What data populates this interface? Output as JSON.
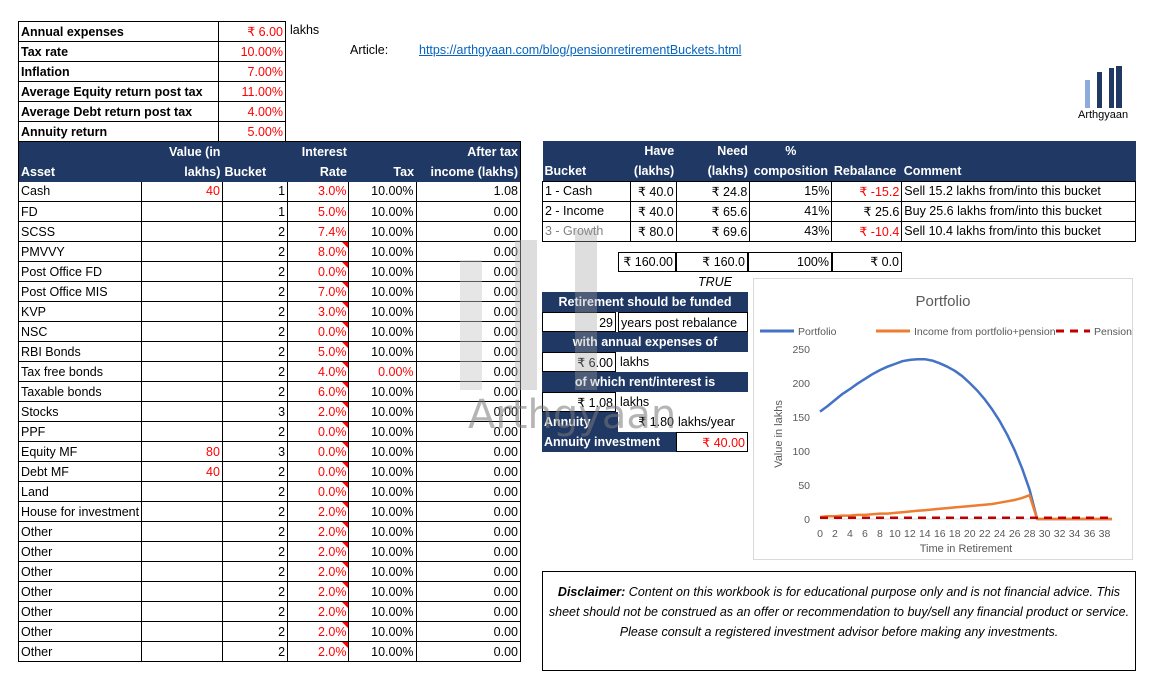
{
  "params": [
    {
      "label": "Annual expenses",
      "value": "₹ 6.00"
    },
    {
      "label": "Tax rate",
      "value": "10.00%"
    },
    {
      "label": "Inflation",
      "value": "7.00%"
    },
    {
      "label": "Average Equity return post tax",
      "value": "11.00%"
    },
    {
      "label": "Average Debt return post tax",
      "value": "4.00%"
    },
    {
      "label": "Annuity return",
      "value": "5.00%"
    }
  ],
  "params_unit": "lakhs",
  "article": {
    "label": "Article:",
    "url": "https://arthgyaan.com/blog/pensionretirementBuckets.html"
  },
  "logo_text": "Arthgyaan",
  "watermark_text": "Arthgyaan",
  "assets_header": {
    "asset": "Asset",
    "value_l1": "Value (in",
    "value_l2": "lakhs)",
    "bucket": "Bucket",
    "rate_l1": "Interest",
    "rate_l2": "Rate",
    "tax": "Tax",
    "income_l1": "After tax",
    "income_l2": "income (lakhs)"
  },
  "assets": [
    {
      "name": "Cash",
      "value": "40",
      "bucket": "1",
      "rate": "3.0%",
      "tax": "10.00%",
      "income": "1.08"
    },
    {
      "name": "FD",
      "value": "",
      "bucket": "1",
      "rate": "5.0%",
      "tax": "10.00%",
      "income": "0.00"
    },
    {
      "name": "SCSS",
      "value": "",
      "bucket": "2",
      "rate": "7.4%",
      "tax": "10.00%",
      "income": "0.00"
    },
    {
      "name": "PMVVY",
      "value": "",
      "bucket": "2",
      "rate": "8.0%",
      "tax": "10.00%",
      "income": "0.00"
    },
    {
      "name": "Post Office FD",
      "value": "",
      "bucket": "2",
      "rate": "0.0%",
      "tax": "10.00%",
      "income": "0.00"
    },
    {
      "name": "Post Office MIS",
      "value": "",
      "bucket": "2",
      "rate": "7.0%",
      "tax": "10.00%",
      "income": "0.00"
    },
    {
      "name": "KVP",
      "value": "",
      "bucket": "2",
      "rate": "3.0%",
      "tax": "10.00%",
      "income": "0.00"
    },
    {
      "name": "NSC",
      "value": "",
      "bucket": "2",
      "rate": "0.0%",
      "tax": "10.00%",
      "income": "0.00"
    },
    {
      "name": "RBI Bonds",
      "value": "",
      "bucket": "2",
      "rate": "5.0%",
      "tax": "10.00%",
      "income": "0.00"
    },
    {
      "name": "Tax free bonds",
      "value": "",
      "bucket": "2",
      "rate": "4.0%",
      "tax": "0.00%",
      "income": "0.00"
    },
    {
      "name": "Taxable bonds",
      "value": "",
      "bucket": "2",
      "rate": "6.0%",
      "tax": "10.00%",
      "income": "0.00"
    },
    {
      "name": "Stocks",
      "value": "",
      "bucket": "3",
      "rate": "2.0%",
      "tax": "10.00%",
      "income": "0.00"
    },
    {
      "name": "PPF",
      "value": "",
      "bucket": "2",
      "rate": "0.0%",
      "tax": "10.00%",
      "income": "0.00"
    },
    {
      "name": "Equity MF",
      "value": "80",
      "bucket": "3",
      "rate": "0.0%",
      "tax": "10.00%",
      "income": "0.00"
    },
    {
      "name": "Debt MF",
      "value": "40",
      "bucket": "2",
      "rate": "0.0%",
      "tax": "10.00%",
      "income": "0.00"
    },
    {
      "name": "Land",
      "value": "",
      "bucket": "2",
      "rate": "0.0%",
      "tax": "10.00%",
      "income": "0.00"
    },
    {
      "name": "House for investment",
      "value": "",
      "bucket": "2",
      "rate": "2.0%",
      "tax": "10.00%",
      "income": "0.00"
    },
    {
      "name": "Other",
      "value": "",
      "bucket": "2",
      "rate": "2.0%",
      "tax": "10.00%",
      "income": "0.00"
    },
    {
      "name": "Other",
      "value": "",
      "bucket": "2",
      "rate": "2.0%",
      "tax": "10.00%",
      "income": "0.00"
    },
    {
      "name": "Other",
      "value": "",
      "bucket": "2",
      "rate": "2.0%",
      "tax": "10.00%",
      "income": "0.00"
    },
    {
      "name": "Other",
      "value": "",
      "bucket": "2",
      "rate": "2.0%",
      "tax": "10.00%",
      "income": "0.00"
    },
    {
      "name": "Other",
      "value": "",
      "bucket": "2",
      "rate": "2.0%",
      "tax": "10.00%",
      "income": "0.00"
    },
    {
      "name": "Other",
      "value": "",
      "bucket": "2",
      "rate": "2.0%",
      "tax": "10.00%",
      "income": "0.00"
    },
    {
      "name": "Other",
      "value": "",
      "bucket": "2",
      "rate": "2.0%",
      "tax": "10.00%",
      "income": "0.00"
    }
  ],
  "buckets_header": {
    "bucket": "Bucket",
    "have_l1": "Have",
    "have_l2": "(lakhs)",
    "need_l1": "Need",
    "need_l2": "(lakhs)",
    "comp_l1": "%",
    "comp_l2": "composition",
    "rebalance": "Rebalance",
    "comment": "Comment"
  },
  "buckets": [
    {
      "name": "1 - Cash",
      "have": "₹ 40.0",
      "need": "₹ 24.8",
      "comp": "15%",
      "rebalance": "₹ -15.2",
      "comment": "Sell 15.2 lakhs from/into this bucket"
    },
    {
      "name": "2 - Income",
      "have": "₹ 40.0",
      "need": "₹ 65.6",
      "comp": "41%",
      "rebalance": "₹ 25.6",
      "comment": "Buy 25.6 lakhs from/into this bucket"
    },
    {
      "name": "3 - Growth",
      "have": "₹ 80.0",
      "need": "₹ 69.6",
      "comp": "43%",
      "rebalance": "₹ -10.4",
      "comment": "Sell 10.4 lakhs from/into this bucket"
    }
  ],
  "bucket_totals": {
    "have": "₹ 160.00",
    "need": "₹ 160.0",
    "comp": "100%",
    "rebalance": "₹ 0.0"
  },
  "flag": "TRUE",
  "summary": {
    "line1": "Retirement should be funded",
    "years": "29",
    "years_text": "years post rebalance",
    "line3": "with annual expenses of",
    "expenses": "₹ 6.00",
    "expenses_unit": "lakhs",
    "line5": "of which rent/interest is",
    "interest": "₹ 1.08",
    "interest_unit": "lakhs",
    "annuity_label": "Annuity",
    "annuity_value": "₹ 1.80",
    "annuity_unit": "lakhs/year",
    "annuity_inv_label": "Annuity investment",
    "annuity_inv_value": "₹ 40.00"
  },
  "chart_data": {
    "type": "line",
    "title": "Portfolio",
    "xlabel": "Time in Retirement",
    "ylabel": "Value in lakhs",
    "xlim": [
      0,
      39
    ],
    "ylim": [
      0,
      250
    ],
    "xticks": [
      "0",
      "2",
      "4",
      "6",
      "8",
      "10",
      "12",
      "14",
      "16",
      "18",
      "20",
      "22",
      "24",
      "26",
      "28",
      "30",
      "32",
      "34",
      "36",
      "38"
    ],
    "yticks": [
      "0",
      "50",
      "100",
      "150",
      "200",
      "250"
    ],
    "legend_position": "top",
    "series": [
      {
        "name": "Portfolio",
        "color": "#4472c4",
        "dash": "solid",
        "x": [
          0,
          1,
          2,
          3,
          4,
          5,
          6,
          7,
          8,
          9,
          10,
          11,
          12,
          13,
          14,
          15,
          16,
          17,
          18,
          19,
          20,
          21,
          22,
          23,
          24,
          25,
          26,
          27,
          28,
          29,
          30,
          31,
          32,
          33,
          34,
          35,
          36,
          37,
          38,
          39
        ],
        "y": [
          158,
          166,
          175,
          184,
          191,
          199,
          206,
          213,
          219,
          224,
          228,
          232,
          234,
          235,
          235,
          233,
          229,
          224,
          218,
          210,
          200,
          189,
          176,
          161,
          144,
          124,
          101,
          74,
          43,
          0,
          0,
          0,
          0,
          0,
          0,
          0,
          0,
          0,
          0,
          0
        ]
      },
      {
        "name": "Income from portfolio+pension",
        "color": "#ed7d31",
        "dash": "solid",
        "x": [
          0,
          1,
          2,
          3,
          4,
          5,
          6,
          7,
          8,
          9,
          10,
          11,
          12,
          13,
          14,
          15,
          16,
          17,
          18,
          19,
          20,
          21,
          22,
          23,
          24,
          25,
          26,
          27,
          28,
          29,
          30,
          31,
          32,
          33,
          34,
          35,
          36,
          37,
          38,
          39
        ],
        "y": [
          3,
          4,
          4,
          5,
          5,
          6,
          6,
          7,
          8,
          8,
          9,
          10,
          11,
          12,
          13,
          14,
          15,
          16,
          17,
          18,
          19,
          20,
          21,
          22,
          24,
          26,
          28,
          31,
          35,
          0,
          0,
          0,
          0,
          0,
          0,
          0,
          0,
          0,
          0,
          0
        ]
      },
      {
        "name": "Pension",
        "color": "#c00000",
        "dash": "dashed",
        "x": [
          0,
          39
        ],
        "y": [
          1.8,
          1.8
        ]
      }
    ]
  },
  "disclaimer": {
    "label": "Disclaimer:",
    "text": " Content on this workbook is for educational purpose only and is not financial advice. This sheet should not be construed as an offer or recommendation to buy/sell any financial product or service. Please consult a registered investment advisor before making any investments."
  }
}
